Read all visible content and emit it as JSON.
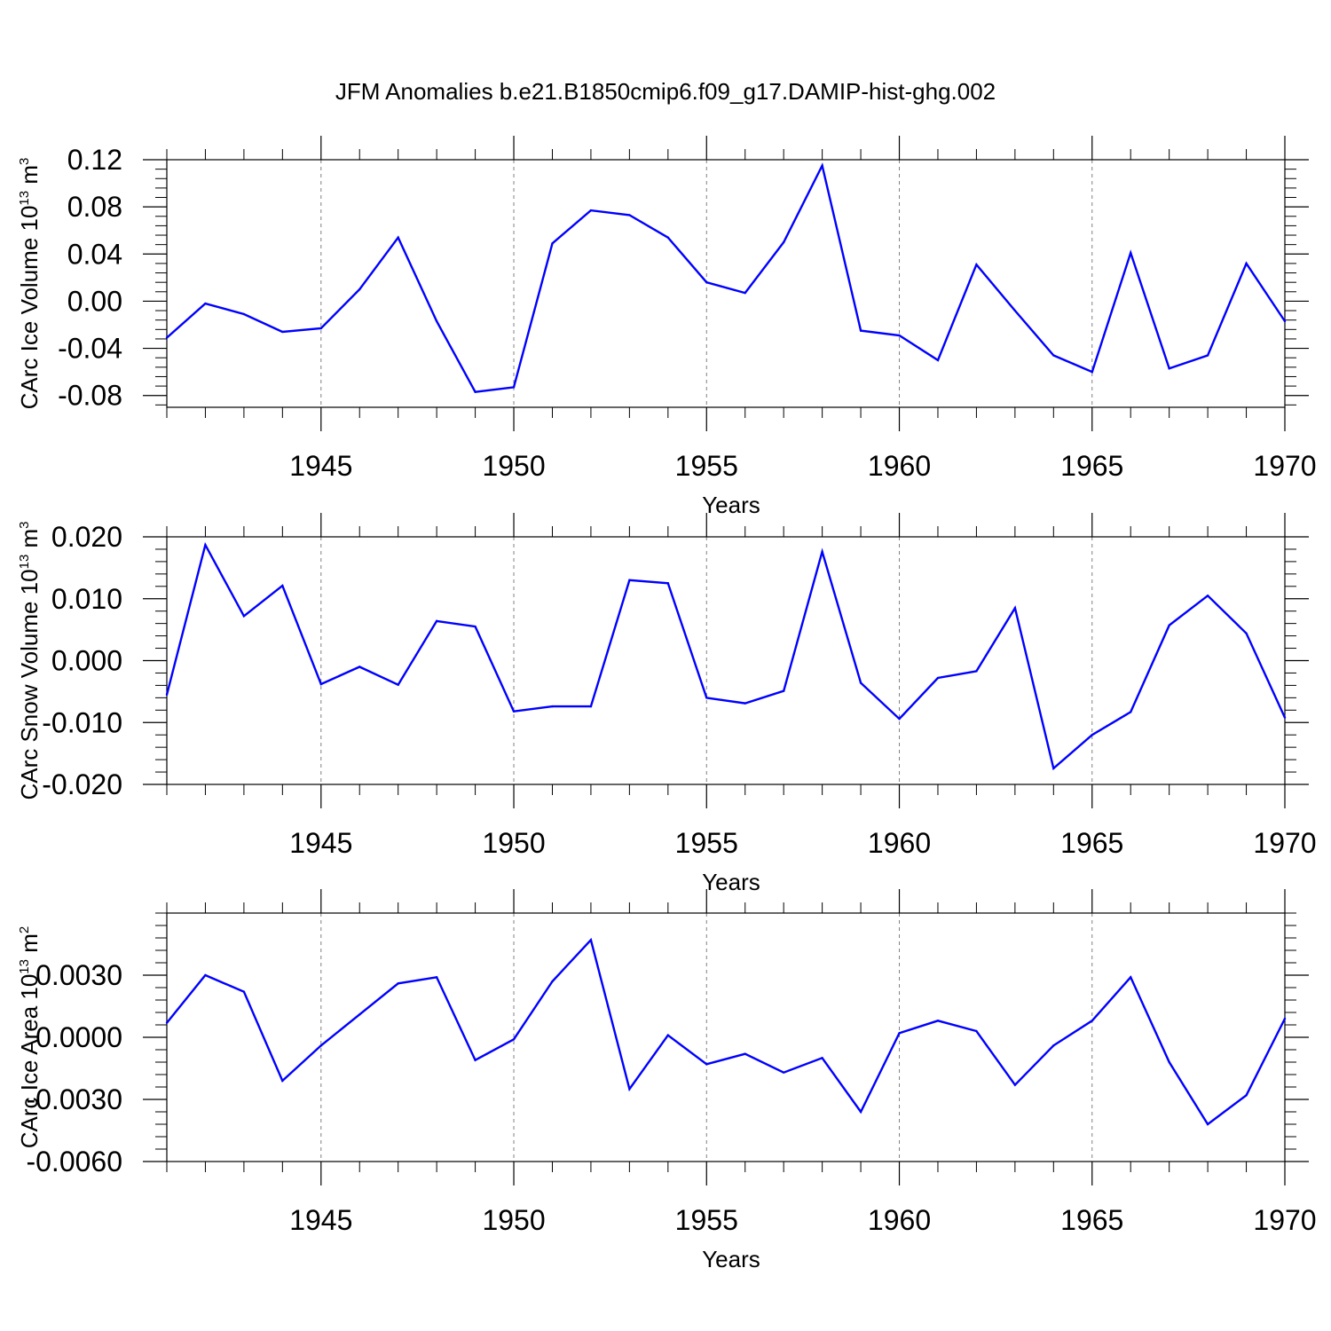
{
  "title": "JFM Anomalies b.e21.B1850cmip6.f09_g17.DAMIP-hist-ghg.002",
  "colors": {
    "line": "#0000ff",
    "axis": "#000000",
    "grid": "#808080"
  },
  "chart_data": [
    {
      "type": "line",
      "ylabel_main": "CArc Ice Volume 10",
      "ylabel_sup": "13",
      "ylabel_unit": "m",
      "ylabel_unit_sup": "3",
      "xlabel": "Years",
      "xlim": [
        1941,
        1970
      ],
      "ylim": [
        -0.09,
        0.12
      ],
      "xticks": [
        1945,
        1950,
        1955,
        1960,
        1965,
        1970
      ],
      "xtick_labels": [
        "1945",
        "1950",
        "1955",
        "1960",
        "1965",
        "1970"
      ],
      "yticks": [
        0.12,
        0.08,
        0.04,
        0.0,
        -0.04,
        -0.08
      ],
      "ytick_labels": [
        "0.12",
        "0.08",
        "0.04",
        "0.00",
        "-0.04",
        "-0.08"
      ],
      "x": [
        1941,
        1942,
        1943,
        1944,
        1945,
        1946,
        1947,
        1948,
        1949,
        1950,
        1951,
        1952,
        1953,
        1954,
        1955,
        1956,
        1957,
        1958,
        1959,
        1960,
        1961,
        1962,
        1963,
        1964,
        1965,
        1966,
        1967,
        1968,
        1969,
        1970
      ],
      "values": [
        -0.031,
        -0.002,
        -0.011,
        -0.026,
        -0.023,
        0.01,
        0.054,
        -0.017,
        -0.077,
        -0.073,
        0.049,
        0.077,
        0.073,
        0.054,
        0.016,
        0.007,
        0.05,
        0.115,
        -0.025,
        -0.029,
        -0.05,
        0.031,
        -0.008,
        -0.046,
        -0.06,
        0.041,
        -0.057,
        -0.046,
        0.032,
        -0.017
      ]
    },
    {
      "type": "line",
      "ylabel_main": "CArc Snow Volume 10",
      "ylabel_sup": "13",
      "ylabel_unit": "m",
      "ylabel_unit_sup": "3",
      "xlabel": "Years",
      "xlim": [
        1941,
        1970
      ],
      "ylim": [
        -0.02,
        0.02
      ],
      "xticks": [
        1945,
        1950,
        1955,
        1960,
        1965,
        1970
      ],
      "xtick_labels": [
        "1945",
        "1950",
        "1955",
        "1960",
        "1965",
        "1970"
      ],
      "yticks": [
        0.02,
        0.01,
        0.0,
        -0.01,
        -0.02
      ],
      "ytick_labels": [
        "0.020",
        "0.010",
        "0.000",
        "-0.010",
        "-0.020"
      ],
      "x": [
        1941,
        1942,
        1943,
        1944,
        1945,
        1946,
        1947,
        1948,
        1949,
        1950,
        1951,
        1952,
        1953,
        1954,
        1955,
        1956,
        1957,
        1958,
        1959,
        1960,
        1961,
        1962,
        1963,
        1964,
        1965,
        1966,
        1967,
        1968,
        1969,
        1970
      ],
      "values": [
        -0.0055,
        0.0187,
        0.0072,
        0.0121,
        -0.0038,
        -0.001,
        -0.0039,
        0.0064,
        0.0055,
        -0.0082,
        -0.0074,
        -0.0074,
        0.013,
        0.0125,
        -0.006,
        -0.0069,
        -0.0049,
        0.0176,
        -0.0036,
        -0.0094,
        -0.0028,
        -0.0017,
        0.0085,
        -0.0174,
        -0.012,
        -0.0083,
        0.0057,
        0.0105,
        0.0044,
        -0.0092
      ]
    },
    {
      "type": "line",
      "ylabel_main": "CArc Ice Area 10",
      "ylabel_sup": "13",
      "ylabel_unit": "m",
      "ylabel_unit_sup": "2",
      "xlabel": "Years",
      "xlim": [
        1941,
        1970
      ],
      "ylim": [
        -0.006,
        0.006
      ],
      "xticks": [
        1945,
        1950,
        1955,
        1960,
        1965,
        1970
      ],
      "xtick_labels": [
        "1945",
        "1950",
        "1955",
        "1960",
        "1965",
        "1970"
      ],
      "yticks": [
        0.003,
        0.0,
        -0.003,
        -0.006
      ],
      "ytick_labels": [
        "0.0030",
        "0.0000",
        "-0.0030",
        "-0.0060"
      ],
      "x": [
        1941,
        1942,
        1943,
        1944,
        1945,
        1946,
        1947,
        1948,
        1949,
        1950,
        1951,
        1952,
        1953,
        1954,
        1955,
        1956,
        1957,
        1958,
        1959,
        1960,
        1961,
        1962,
        1963,
        1964,
        1965,
        1966,
        1967,
        1968,
        1969,
        1970
      ],
      "values": [
        0.0007,
        0.003,
        0.0022,
        -0.0021,
        -0.0004,
        0.0011,
        0.0026,
        0.0029,
        -0.0011,
        -0.0001,
        0.0027,
        0.0047,
        -0.0025,
        0.0001,
        -0.0013,
        -0.0008,
        -0.0017,
        -0.001,
        -0.0036,
        0.0002,
        0.0008,
        0.0003,
        -0.0023,
        -0.0004,
        0.0008,
        0.0029,
        -0.0012,
        -0.0042,
        -0.0028,
        0.0009
      ]
    }
  ]
}
